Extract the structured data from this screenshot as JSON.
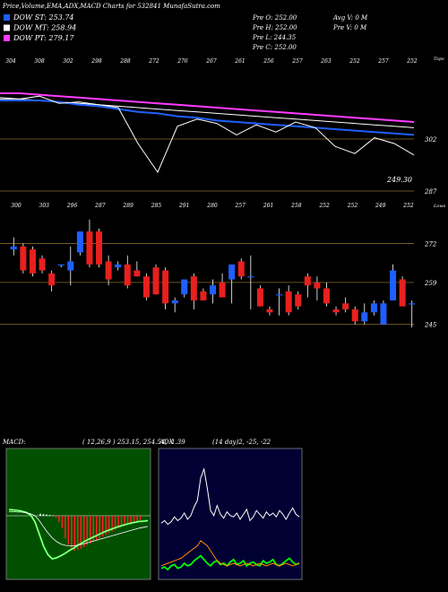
{
  "header": {
    "title": "Price,Volume,EMA,ADX,MACD Charts for 532841 MunafaSutra.com",
    "ohlc": {
      "prev_open": "Pre  O: 252.00",
      "prev_high": "Pre  H: 252.00",
      "prev_low": "Pre  L: 244.35",
      "prev_close": "Pre  C: 252.00",
      "avg_volume": "Avg V: 0  M",
      "prev_volume": "Pre  V: 0  M"
    }
  },
  "legend": [
    {
      "label": "DOW ST: 253.74",
      "color": "#1f5fff"
    },
    {
      "label": "DOW MT: 258.94",
      "color": "#ffffff"
    },
    {
      "label": "DOW PT: 279.17",
      "color": "#ff3cff"
    }
  ],
  "colors": {
    "up": "#1f5fff",
    "down": "#e8201e",
    "grid": "#8a6a2a",
    "macd_bg": "#005000",
    "adx_bg": "#000033"
  },
  "chart_data": [
    {
      "type": "line",
      "panel": "ema",
      "top_tick_labels": [
        "304",
        "308",
        "302",
        "298",
        "288",
        "272",
        "276",
        "267",
        "261",
        "256",
        "257",
        "263",
        "252",
        "257",
        "252"
      ],
      "right_labels": [
        "Tops",
        "302",
        "287"
      ],
      "last_price_label": "249.30",
      "series": [
        {
          "name": "DOW PT",
          "color": "#ff3cff",
          "values": [
            305,
            305,
            304,
            303,
            302,
            301,
            300,
            299,
            298,
            297,
            296,
            295,
            294,
            293,
            292,
            291,
            290,
            289,
            288,
            287,
            286,
            285
          ]
        },
        {
          "name": "DOW MT",
          "color": "#ffffff",
          "values": [
            301,
            301,
            300,
            299,
            298,
            297,
            296,
            295,
            294,
            293,
            292,
            291,
            290,
            289,
            288,
            287,
            286,
            285,
            284,
            283,
            282,
            281
          ]
        },
        {
          "name": "DOW ST",
          "color": "#1f5fff",
          "values": [
            300,
            300,
            300,
            299,
            297,
            296,
            294,
            292,
            291,
            289,
            288,
            286,
            285,
            284,
            283,
            282,
            281,
            280,
            279,
            278,
            277,
            276
          ]
        },
        {
          "name": "Price",
          "color": "#ffffff",
          "values": [
            302,
            301,
            303,
            298,
            299,
            297,
            295,
            270,
            250,
            282,
            287,
            284,
            276,
            283,
            278,
            285,
            281,
            268,
            263,
            274,
            270,
            262
          ]
        }
      ]
    },
    {
      "type": "candlestick",
      "panel": "price",
      "top_tick_labels": [
        "300",
        "303",
        "296",
        "287",
        "289",
        "285",
        "291",
        "280",
        "257",
        "261",
        "258",
        "252",
        "252",
        "249",
        "252"
      ],
      "right_labels": [
        "Lows",
        "272",
        "259",
        "245"
      ],
      "ylim": [
        238,
        285
      ],
      "candles": [
        {
          "o": 270,
          "h": 274,
          "l": 268,
          "c": 271
        },
        {
          "o": 271,
          "h": 272,
          "l": 262,
          "c": 263
        },
        {
          "o": 270,
          "h": 271,
          "l": 261,
          "c": 262
        },
        {
          "o": 267,
          "h": 268,
          "l": 262,
          "c": 263
        },
        {
          "o": 262,
          "h": 263,
          "l": 256,
          "c": 258
        },
        {
          "o": 265,
          "h": 265,
          "l": 264,
          "c": 265
        },
        {
          "o": 263,
          "h": 271,
          "l": 258,
          "c": 266
        },
        {
          "o": 269,
          "h": 276,
          "l": 268,
          "c": 276
        },
        {
          "o": 276,
          "h": 280,
          "l": 264,
          "c": 265
        },
        {
          "o": 276,
          "h": 277,
          "l": 264,
          "c": 265
        },
        {
          "o": 266,
          "h": 268,
          "l": 258,
          "c": 260
        },
        {
          "o": 264,
          "h": 266,
          "l": 263,
          "c": 265
        },
        {
          "o": 265,
          "h": 268,
          "l": 257,
          "c": 258
        },
        {
          "o": 263,
          "h": 266,
          "l": 261,
          "c": 261
        },
        {
          "o": 261,
          "h": 262,
          "l": 253,
          "c": 254
        },
        {
          "o": 264,
          "h": 265,
          "l": 255,
          "c": 255
        },
        {
          "o": 263,
          "h": 264,
          "l": 250,
          "c": 252
        },
        {
          "o": 252,
          "h": 254,
          "l": 249,
          "c": 253
        },
        {
          "o": 255,
          "h": 260,
          "l": 254,
          "c": 260
        },
        {
          "o": 261,
          "h": 262,
          "l": 250,
          "c": 253
        },
        {
          "o": 256,
          "h": 257,
          "l": 253,
          "c": 253
        },
        {
          "o": 255,
          "h": 260,
          "l": 252,
          "c": 258
        },
        {
          "o": 259,
          "h": 262,
          "l": 254,
          "c": 254
        },
        {
          "o": 260,
          "h": 265,
          "l": 252,
          "c": 265
        },
        {
          "o": 266,
          "h": 267,
          "l": 260,
          "c": 261
        },
        {
          "o": 261,
          "h": 268,
          "l": 250,
          "c": 261
        },
        {
          "o": 257,
          "h": 258,
          "l": 251,
          "c": 251
        },
        {
          "o": 250,
          "h": 251,
          "l": 248,
          "c": 249
        },
        {
          "o": 255,
          "h": 257,
          "l": 248,
          "c": 255
        },
        {
          "o": 256,
          "h": 258,
          "l": 248,
          "c": 249
        },
        {
          "o": 255,
          "h": 256,
          "l": 250,
          "c": 251
        },
        {
          "o": 261,
          "h": 262,
          "l": 254,
          "c": 258
        },
        {
          "o": 259,
          "h": 261,
          "l": 253,
          "c": 257
        },
        {
          "o": 257,
          "h": 259,
          "l": 251,
          "c": 252
        },
        {
          "o": 250,
          "h": 251,
          "l": 248,
          "c": 249
        },
        {
          "o": 252,
          "h": 254,
          "l": 249,
          "c": 250
        },
        {
          "o": 250,
          "h": 251,
          "l": 245,
          "c": 246
        },
        {
          "o": 246,
          "h": 252,
          "l": 245,
          "c": 249
        },
        {
          "o": 249,
          "h": 253,
          "l": 248,
          "c": 252
        },
        {
          "o": 245,
          "h": 253,
          "l": 245,
          "c": 252
        },
        {
          "o": 253,
          "h": 265,
          "l": 253,
          "c": 263
        },
        {
          "o": 260,
          "h": 261,
          "l": 251,
          "c": 251
        },
        {
          "o": 252,
          "h": 253,
          "l": 244,
          "c": 252
        }
      ]
    },
    {
      "type": "bar",
      "panel": "macd",
      "label": "MACD:",
      "values_text": "( 12,26,9 ) 253.15,  254.54,  -1.39",
      "ylim": [
        -12,
        12
      ],
      "histogram": [
        0.5,
        0.4,
        0.3,
        0.2,
        0.1,
        -0.5,
        -1.5,
        -3,
        -5.5,
        -7,
        -8,
        -8.5,
        -8.3,
        -8,
        -7.6,
        -7.2,
        -6.8,
        -6.3,
        -5.9,
        -5.4,
        -5,
        -4.6,
        -4.2,
        -3.8,
        -3.4,
        -3,
        -2.7,
        -2.4,
        -2.1,
        -1.8,
        -1.5,
        -1.3,
        -1.1
      ],
      "series": [
        {
          "name": "MACD",
          "color": "#ffffff",
          "values": [
            1.5,
            1.4,
            1.3,
            1.1,
            0.8,
            0.2,
            -1.5,
            -4.5,
            -7.5,
            -9.5,
            -10.5,
            -10.2,
            -9.7,
            -9.1,
            -8.4,
            -7.8,
            -7.1,
            -6.5,
            -5.9,
            -5.4,
            -4.9,
            -4.4,
            -3.9,
            -3.5,
            -3.1,
            -2.7,
            -2.4,
            -2.1,
            -1.8,
            -1.6,
            -1.4,
            -1.3,
            -1.2
          ]
        },
        {
          "name": "Signal",
          "color": "#ffffff",
          "values": [
            1.0,
            1.0,
            0.9,
            0.9,
            0.7,
            0.5,
            0.0,
            -1.2,
            -2.8,
            -4.2,
            -5.4,
            -6.3,
            -6.9,
            -7.2,
            -7.3,
            -7.3,
            -7.1,
            -6.9,
            -6.6,
            -6.3,
            -6.0,
            -5.7,
            -5.4,
            -5.1,
            -4.8,
            -4.5,
            -4.2,
            -3.9,
            -3.6,
            -3.3,
            -3.0,
            -2.8,
            -2.6
          ]
        }
      ]
    },
    {
      "type": "line",
      "panel": "adx",
      "label": "ADX",
      "values_text": "(14  day)2,  -25,  -22",
      "ylim": [
        0,
        100
      ],
      "series": [
        {
          "name": "ADX",
          "color": "#ffffff",
          "values": [
            42,
            44,
            41,
            43,
            47,
            44,
            46,
            50,
            45,
            48,
            55,
            60,
            78,
            85,
            70,
            52,
            48,
            56,
            49,
            46,
            51,
            48,
            47,
            50,
            45,
            49,
            53,
            44,
            47,
            52,
            49,
            46,
            51,
            48,
            50,
            47,
            52,
            49,
            45,
            50,
            54,
            49,
            47
          ]
        },
        {
          "name": "+DI",
          "color": "#00ff00",
          "values": [
            6,
            7,
            5,
            8,
            9,
            6,
            7,
            10,
            8,
            9,
            12,
            14,
            16,
            13,
            10,
            8,
            11,
            12,
            9,
            10,
            8,
            11,
            13,
            9,
            10,
            12,
            8,
            10,
            11,
            9,
            8,
            12,
            10,
            11,
            13,
            9,
            8,
            10,
            12,
            14,
            11,
            9,
            10
          ]
        },
        {
          "name": "-DI",
          "color": "#ff8c00",
          "values": [
            8,
            9,
            10,
            11,
            12,
            13,
            14,
            16,
            18,
            20,
            22,
            24,
            28,
            26,
            24,
            20,
            16,
            12,
            10,
            9,
            8,
            9,
            10,
            9,
            8,
            9,
            10,
            9,
            8,
            9,
            10,
            9,
            8,
            9,
            10,
            9,
            8,
            9,
            10,
            9,
            8,
            9,
            10
          ]
        }
      ]
    }
  ]
}
